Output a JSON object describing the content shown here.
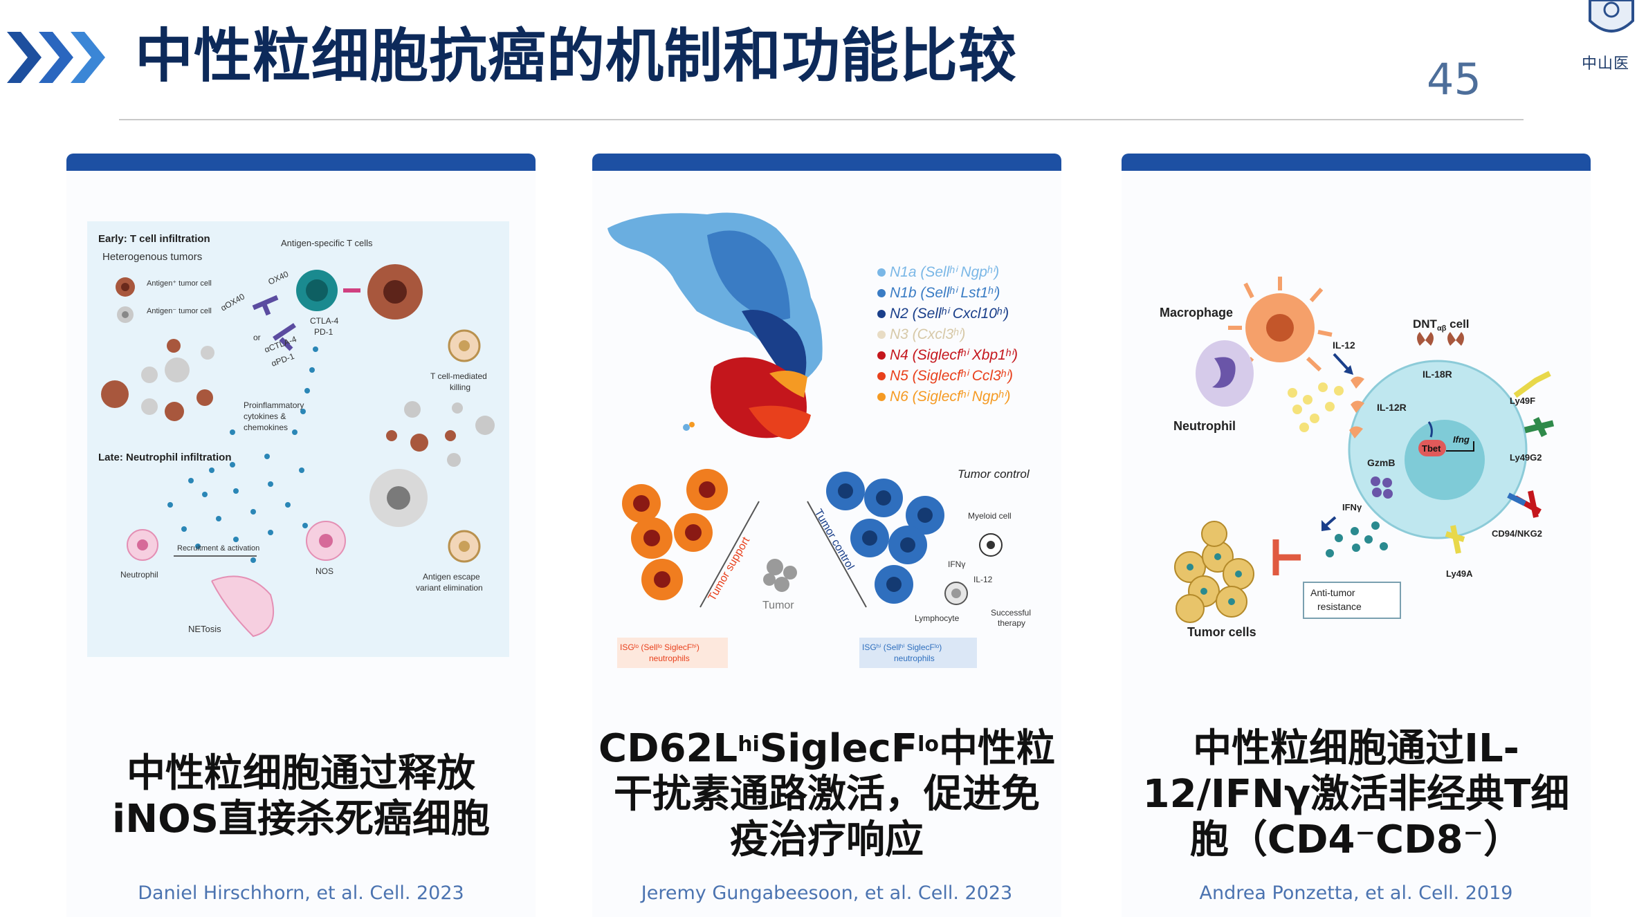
{
  "header": {
    "title": "中性粒细胞抗癌的机制和功能比较",
    "page_number": "45",
    "logo_text": "中山医"
  },
  "colors": {
    "accent": "#1d50a3",
    "title": "#0d2a5a",
    "citation": "#4b73b0"
  },
  "panels": [
    {
      "figure": {
        "early_title": "Early: T cell infiltration",
        "hetero": "Heterogenous tumors",
        "antigen_pos": "Antigen⁺ tumor cell",
        "antigen_neg": "Antigen⁻ tumor cell",
        "antigen_specific": "Antigen-specific T cells",
        "ox40": "OX40",
        "aox40": "αOX40",
        "or": "or",
        "ctla4": "CTLA-4",
        "pd1": "PD-1",
        "actla4": "αCTLA-4",
        "apd1": "αPD-1",
        "cytokines": "Proinflammatory cytokines & chemokines",
        "tcell_killing": "T cell-mediated killing",
        "late_title": "Late: Neutrophil infiltration",
        "recruitment": "Recruitment & activation",
        "neutrophil": "Neutrophil",
        "nos": "NOS",
        "netosis": "NETosis",
        "escape": "Antigen escape variant elimination"
      },
      "caption_lines": [
        "中性粒细胞通过释放",
        "iNOS直接杀死癌细胞"
      ],
      "citation": "Daniel Hirschhorn, et al. Cell. 2023"
    },
    {
      "figure": {
        "legend": [
          {
            "label": "N1a (Sellʰⁱ Ngpʰⁱ)",
            "color": "#7ab7e6"
          },
          {
            "label": "N1b (Sellʰⁱ Lst1ʰⁱ)",
            "color": "#3a7cc4"
          },
          {
            "label": "N2 (Sellʰⁱ Cxcl10ʰⁱ)",
            "color": "#1a3f8a"
          },
          {
            "label": "N3 (Cxcl3ʰⁱ)",
            "color": "#e8dcc4"
          },
          {
            "label": "N4 (Siglecfʰⁱ Xbp1ʰⁱ)",
            "color": "#c4161c"
          },
          {
            "label": "N5 (Siglecfʰⁱ Ccl3ʰⁱ)",
            "color": "#e8401c"
          },
          {
            "label": "N6 (Siglecfʰⁱ Ngpʰⁱ)",
            "color": "#f59a23"
          }
        ],
        "tumor_control": "Tumor control",
        "tumor_support": "Tumor support",
        "tumor_control_diag": "Tumor control",
        "tumor": "Tumor",
        "myeloid": "Myeloid cell",
        "ifny": "IFNγ",
        "il12": "IL-12",
        "lymphocyte": "Lymphocyte",
        "therapy": "Successful therapy",
        "isg_lo": "ISGˡᵒ (Sellˡᵒ SiglecFʰⁱ) neutrophils",
        "isg_hi": "ISGʰⁱ (Sellʰⁱ SiglecFˡᵒ) neutrophils"
      },
      "caption_parts": {
        "a": "CD62L",
        "sup1": "hi",
        "b": "SiglecF",
        "sup2": "lo",
        "c": "中性粒",
        "line2": "干扰素通路激活，促进免",
        "line3": "疫治疗响应"
      },
      "citation": "Jeremy Gungabeesoon, et al. Cell. 2023"
    },
    {
      "figure": {
        "macrophage": "Macrophage",
        "neutrophil": "Neutrophil",
        "dnt": "DNT",
        "dnt_sub": "αβ",
        "dnt_tail": " cell",
        "il12": "IL-12",
        "il18r": "IL-18R",
        "il12r": "IL-12R",
        "tbet": "Tbet",
        "ifng": "Ifng",
        "gzmb": "GzmB",
        "ly49f": "Ly49F",
        "ly49g2": "Ly49G2",
        "cd94": "CD94/NKG2",
        "ly49a": "Ly49A",
        "ifny": "IFNγ",
        "anti_tumor": "Anti-tumor resistance",
        "tumor_cells": "Tumor cells"
      },
      "caption_lines": [
        "中性粒细胞通过IL-",
        "12/IFNγ激活非经典T细",
        "胞（CD4⁻CD8⁻）"
      ],
      "citation": "Andrea Ponzetta, et al. Cell. 2019"
    }
  ]
}
